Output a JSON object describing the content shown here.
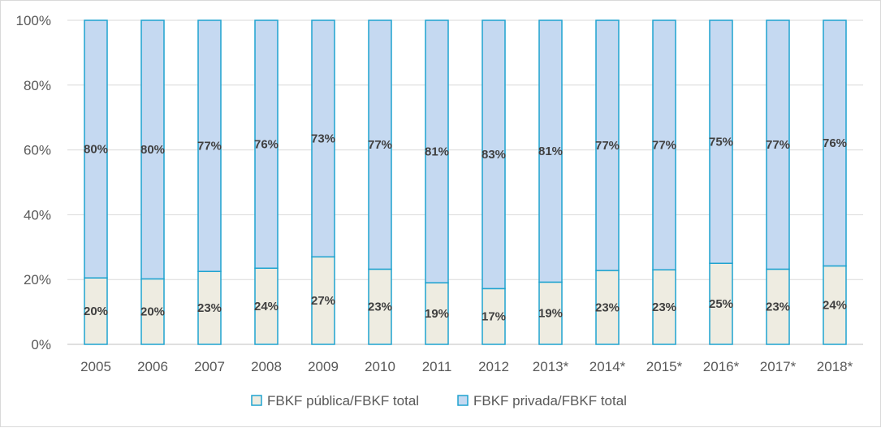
{
  "chart_data": {
    "type": "bar",
    "stacked": true,
    "percent": true,
    "title": "",
    "xlabel": "",
    "ylabel": "",
    "ylim": [
      0,
      100
    ],
    "y_ticks": [
      "0%",
      "20%",
      "40%",
      "60%",
      "80%",
      "100%"
    ],
    "categories": [
      "2005",
      "2006",
      "2007",
      "2008",
      "2009",
      "2010",
      "2011",
      "2012",
      "2013*",
      "2014*",
      "2015*",
      "2016*",
      "2017*",
      "2018*"
    ],
    "series": [
      {
        "name": "FBKF pública/FBKF total",
        "values": [
          20.5,
          20.2,
          22.5,
          23.5,
          27,
          23.2,
          19,
          17.2,
          19.2,
          22.8,
          23,
          25,
          23.2,
          24.2
        ],
        "labels": [
          "20%",
          "20%",
          "23%",
          "24%",
          "27%",
          "23%",
          "19%",
          "17%",
          "19%",
          "23%",
          "23%",
          "25%",
          "23%",
          "24%"
        ],
        "color": "#eeece1",
        "border": "#1fa3cf"
      },
      {
        "name": "FBKF privada/FBKF total",
        "values": [
          79.5,
          79.8,
          77.5,
          76.5,
          73,
          76.8,
          81,
          82.8,
          80.8,
          77.2,
          77,
          75,
          76.8,
          75.8
        ],
        "labels": [
          "80%",
          "80%",
          "77%",
          "76%",
          "73%",
          "77%",
          "81%",
          "83%",
          "81%",
          "77%",
          "77%",
          "75%",
          "77%",
          "76%"
        ],
        "color": "#c5d9f1",
        "border": "#1fa3cf"
      }
    ],
    "grid": true,
    "legend_position": "bottom"
  }
}
